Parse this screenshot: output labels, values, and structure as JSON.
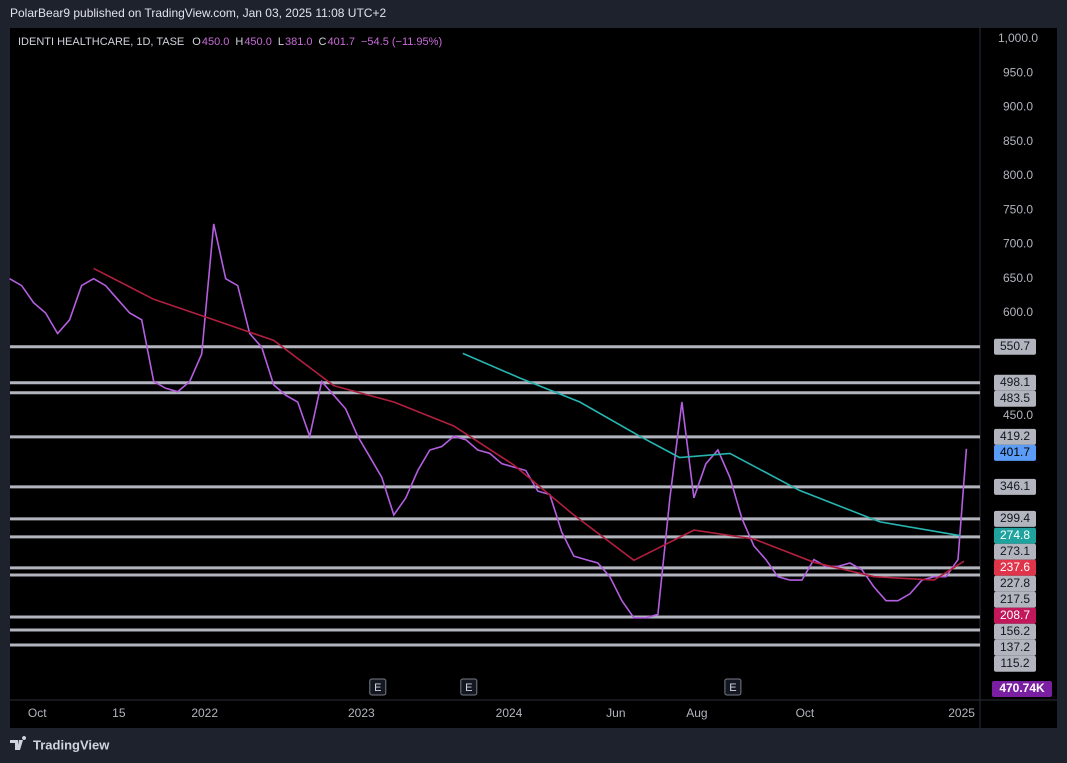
{
  "header": {
    "publisher": "PolarBear9 published on TradingView.com, Jan 03, 2025 11:08 UTC+2",
    "brand": "TradingView"
  },
  "chart_data": {
    "type": "line",
    "symbol": "IDENTI HEALTHCARE, 1D, TASE",
    "ohlc": [
      {
        "label": "O",
        "value": 450.0,
        "value_label": "450.0"
      },
      {
        "label": "H",
        "value": 450.0,
        "value_label": "450.0"
      },
      {
        "label": "L",
        "value": 381.0,
        "value_label": "381.0"
      },
      {
        "label": "C",
        "value": 401.7,
        "value_label": "401.7"
      }
    ],
    "change": "−54.5 (−11.95%)",
    "xlim": [
      -0.8,
      81
    ],
    "xticks": [
      {
        "value": 2.3,
        "label": "Oct"
      },
      {
        "value": 9.1,
        "label": "15"
      },
      {
        "value": 16.25,
        "label": "2022"
      },
      {
        "value": 29.3,
        "label": "2023"
      },
      {
        "value": 41.6,
        "label": "2024"
      },
      {
        "value": 50.5,
        "label": "Jun"
      },
      {
        "value": 57.25,
        "label": "Aug"
      },
      {
        "value": 66.25,
        "label": "Oct"
      },
      {
        "value": 79.3,
        "label": "2025"
      }
    ],
    "ylim": [
      35,
      1016
    ],
    "yticks": [
      {
        "value": 1000,
        "label": "1,000.0"
      },
      {
        "value": 950,
        "label": "950.0"
      },
      {
        "value": 900,
        "label": "900.0"
      },
      {
        "value": 850,
        "label": "850.0"
      },
      {
        "value": 800,
        "label": "800.0"
      },
      {
        "value": 750,
        "label": "750.0"
      },
      {
        "value": 700,
        "label": "700.0"
      },
      {
        "value": 650,
        "label": "650.0"
      },
      {
        "value": 600,
        "label": "600.0"
      },
      {
        "value": 450,
        "label": "450.0"
      }
    ],
    "series": [
      {
        "color": "#b45ee0",
        "x": [
          0,
          1,
          2,
          3,
          4,
          5,
          6,
          7,
          8,
          9,
          10,
          11,
          12,
          13,
          14,
          15,
          16,
          17,
          18,
          19,
          20,
          21,
          22,
          23,
          24,
          25,
          26,
          27,
          28,
          29,
          30,
          31,
          32,
          33,
          34,
          35,
          36,
          37,
          38,
          39,
          40,
          41,
          42,
          43,
          44,
          45,
          46,
          47,
          48,
          49,
          50,
          51,
          52,
          53,
          54,
          55,
          56,
          57,
          58,
          59,
          60,
          61,
          62,
          63,
          64,
          65,
          66,
          67,
          68,
          69,
          70,
          71,
          72,
          73,
          74,
          75,
          76,
          77,
          78,
          79,
          79.7
        ],
        "values": [
          650,
          640,
          615,
          600,
          570,
          590,
          640,
          650,
          640,
          620,
          600,
          590,
          500,
          490,
          485,
          500,
          540,
          730,
          650,
          640,
          570,
          550,
          495,
          480,
          470,
          420,
          500,
          480,
          460,
          420,
          390,
          360,
          305,
          330,
          370,
          400,
          405,
          420,
          415,
          400,
          395,
          380,
          375,
          370,
          340,
          335,
          280,
          245,
          240,
          235,
          215,
          180,
          155,
          155,
          160,
          330,
          470,
          330,
          380,
          400,
          360,
          300,
          260,
          240,
          215,
          210,
          210,
          240,
          230,
          230,
          235,
          225,
          200,
          180,
          180,
          190,
          210,
          215,
          215,
          240,
          401.7
        ]
      },
      {
        "color": "#26b5b0",
        "x": [
          37.75,
          42.5,
          47.5,
          52.5,
          55.8,
          60,
          65.8,
          72.5,
          79.2
        ],
        "values": [
          541,
          505,
          470,
          420,
          389,
          395,
          341,
          295,
          274.8
        ]
      },
      {
        "color": "#b0203e",
        "x": [
          7,
          12,
          17,
          22,
          27,
          32,
          37,
          42,
          47,
          52,
          57,
          62,
          67,
          72,
          77,
          79.5
        ],
        "values": [
          665,
          620,
          590,
          560,
          494,
          470,
          435,
          378,
          305,
          239,
          283,
          270,
          236,
          215,
          210,
          237.6
        ]
      }
    ],
    "levels": {
      "color": "#b2b5be",
      "values": [
        550.7,
        498.1,
        483.5,
        419.2,
        346.1,
        299.4,
        273.1,
        227.8,
        217.5,
        156.2,
        137.2,
        115.2
      ],
      "value_labels": [
        "550.7",
        "498.1",
        "483.5",
        "419.2",
        "346.1",
        "299.4",
        "273.1",
        "227.8",
        "217.5",
        "156.2",
        "137.2",
        "115.2"
      ]
    },
    "price_labels": [
      {
        "value": 401.7,
        "label": "401.7",
        "color": "#5b9cf6",
        "text_color": "#000000"
      },
      {
        "value": 274.8,
        "label": "274.8",
        "color": "#1fa39e",
        "text_color": "#ffffff"
      },
      {
        "value": 237.6,
        "label": "237.6",
        "color": "#e0344b",
        "text_color": "#ffffff"
      },
      {
        "value": 208.7,
        "label": "208.7",
        "color": "#c2185b",
        "text_color": "#ffffff"
      }
    ],
    "volume": {
      "value": 470740,
      "label": "470.74K",
      "color": "#7b1fa2"
    },
    "earnings": {
      "label": "E",
      "x": [
        30.67,
        38.25,
        60.25
      ]
    }
  }
}
